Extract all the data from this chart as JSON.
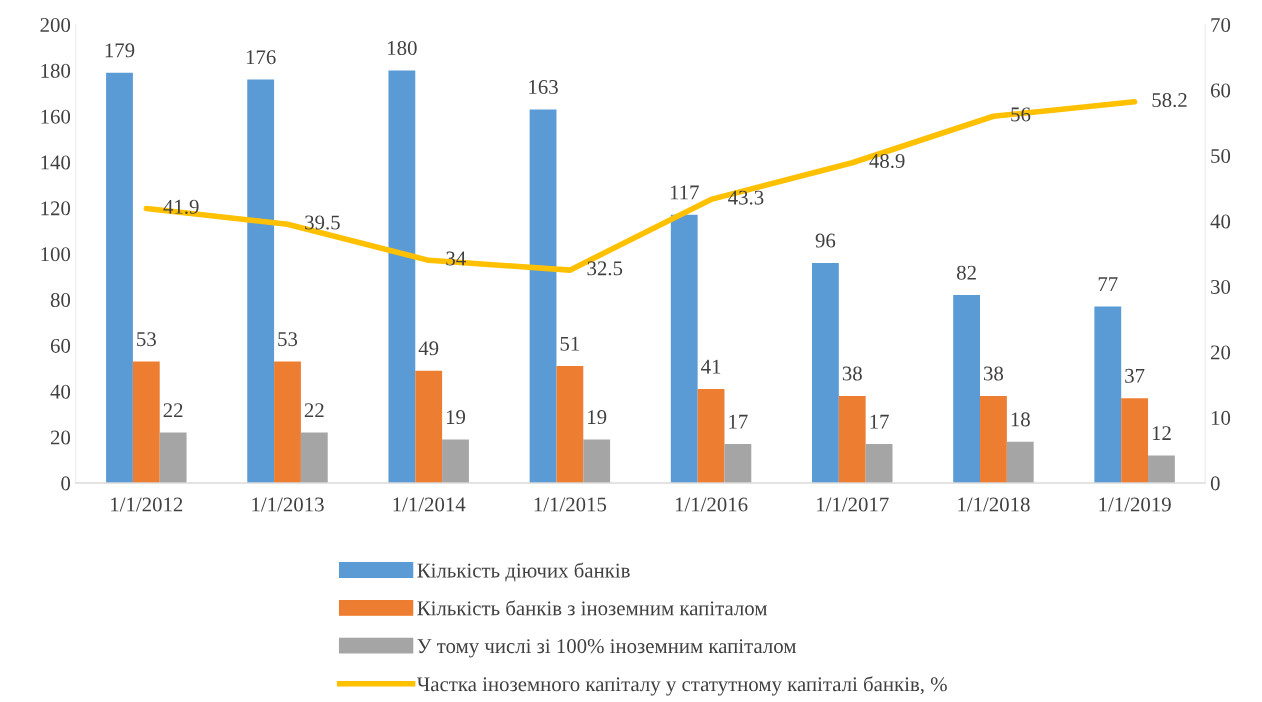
{
  "chart_data": {
    "type": "bar",
    "categories": [
      "1/1/2012",
      "1/1/2013",
      "1/1/2014",
      "1/1/2015",
      "1/1/2016",
      "1/1/2017",
      "1/1/2018",
      "1/1/2019"
    ],
    "series": [
      {
        "name": "Кількість діючих банків",
        "color": "#5b9bd5",
        "values": [
          179,
          176,
          180,
          163,
          117,
          96,
          82,
          77
        ]
      },
      {
        "name": "Кількість банків з іноземним капіталом",
        "color": "#ed7d31",
        "values": [
          53,
          53,
          49,
          51,
          41,
          38,
          38,
          37
        ]
      },
      {
        "name": "У тому числі зі 100% іноземним капіталом",
        "color": "#a5a5a5",
        "values": [
          22,
          22,
          19,
          19,
          17,
          17,
          18,
          12
        ]
      },
      {
        "name": "Частка іноземного капіталу у статутному капіталі банків, %",
        "color": "#ffc000",
        "type": "line",
        "axis": "y2",
        "values": [
          41.9,
          39.5,
          34,
          32.5,
          43.3,
          48.9,
          56,
          58.2
        ]
      }
    ],
    "ylim": [
      0,
      200
    ],
    "yticks": [
      0,
      20,
      40,
      60,
      80,
      100,
      120,
      140,
      160,
      180,
      200
    ],
    "y2lim": [
      0,
      70
    ],
    "y2ticks": [
      0,
      10,
      20,
      30,
      40,
      50,
      60,
      70
    ],
    "data_labels": true,
    "grid": false,
    "legend": "bottom",
    "marker": "none",
    "line_style": "solid"
  }
}
